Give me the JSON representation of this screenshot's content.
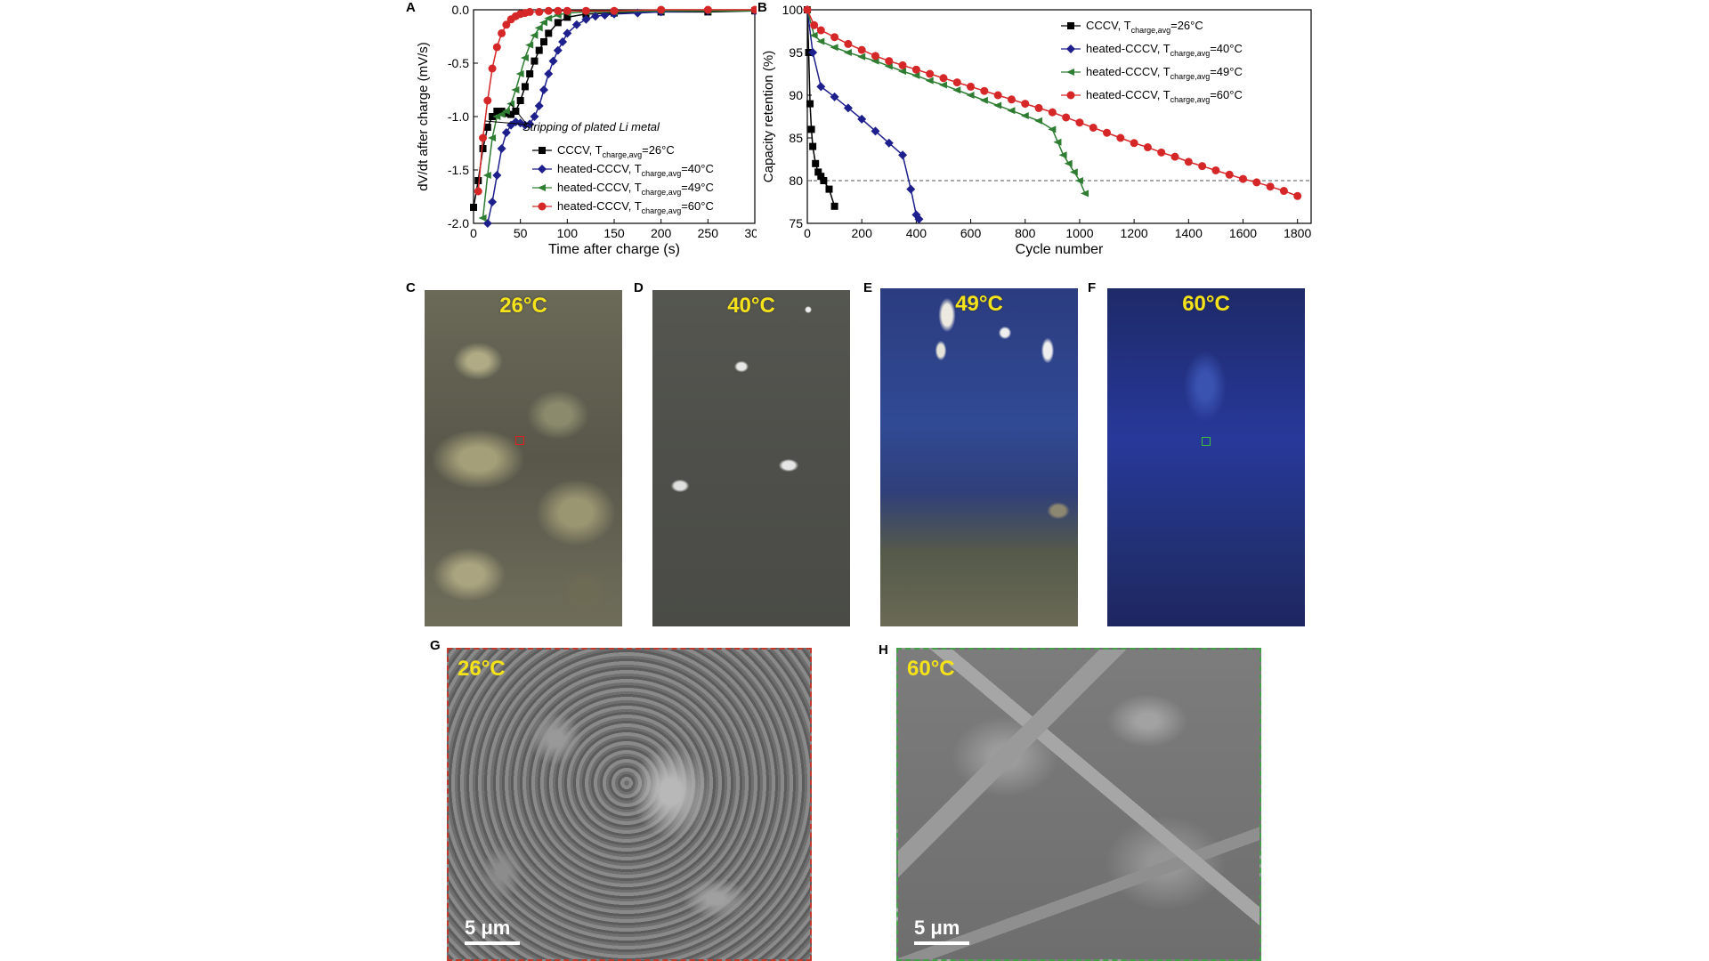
{
  "panels": {
    "A": "A",
    "B": "B",
    "C": "C",
    "D": "D",
    "E": "E",
    "F": "F",
    "G": "G",
    "H": "H"
  },
  "photos": {
    "c": "26°C",
    "d": "40°C",
    "e": "49°C",
    "f": "60°C"
  },
  "sem": {
    "g": {
      "temp": "26°C",
      "scale": "5 μm"
    },
    "h": {
      "temp": "60°C",
      "scale": "5 μm"
    }
  },
  "colors": {
    "cccv": "#000000",
    "h40": "#1d1f8c",
    "h49": "#2e7d32",
    "h60": "#d62728"
  },
  "chart_data": [
    {
      "type": "line",
      "xlabel": "Time after charge (s)",
      "ylabel": "dV/dt after charge (mV/s)",
      "xlim": [
        0,
        300
      ],
      "ylim": [
        -2.0,
        0.0
      ],
      "xticks": [
        "0",
        "50",
        "100",
        "150",
        "200",
        "250",
        "300"
      ],
      "yticks": [
        "-2.0",
        "-1.5",
        "-1.0",
        "-0.5",
        "0.0"
      ],
      "annotation": "Stripping of plated Li metal",
      "legend": "bottom-right",
      "series": [
        {
          "name": "CCCV, T",
          "sub": "charge,avg",
          "suffix": "=26°C",
          "color": "#000000",
          "marker": "square",
          "x": [
            0,
            5,
            10,
            15,
            20,
            25,
            30,
            35,
            40,
            45,
            50,
            55,
            60,
            65,
            70,
            75,
            80,
            90,
            100,
            120,
            150,
            200,
            250,
            300
          ],
          "y": [
            -1.85,
            -1.6,
            -1.3,
            -1.1,
            -1.0,
            -0.95,
            -0.95,
            -0.97,
            -0.98,
            -0.95,
            -0.85,
            -0.72,
            -0.6,
            -0.48,
            -0.38,
            -0.3,
            -0.22,
            -0.12,
            -0.07,
            -0.04,
            -0.03,
            -0.02,
            -0.02,
            -0.01
          ]
        },
        {
          "name": "heated-CCCV, T",
          "sub": "charge,avg",
          "suffix": "=40°C",
          "color": "#1d1f8c",
          "marker": "diamond",
          "x": [
            15,
            20,
            25,
            30,
            35,
            40,
            45,
            50,
            55,
            60,
            65,
            70,
            75,
            80,
            85,
            90,
            95,
            100,
            110,
            120,
            130,
            140,
            150,
            175,
            200,
            250,
            300
          ],
          "y": [
            -2.0,
            -1.8,
            -1.55,
            -1.3,
            -1.15,
            -1.08,
            -1.05,
            -1.06,
            -1.08,
            -1.07,
            -1.0,
            -0.9,
            -0.75,
            -0.6,
            -0.48,
            -0.38,
            -0.3,
            -0.22,
            -0.14,
            -0.09,
            -0.06,
            -0.05,
            -0.04,
            -0.03,
            -0.02,
            -0.01,
            -0.01
          ]
        },
        {
          "name": "heated-CCCV, T",
          "sub": "charge,avg",
          "suffix": "=49°C",
          "color": "#2e7d32",
          "marker": "triangle",
          "x": [
            10,
            15,
            20,
            25,
            30,
            35,
            40,
            45,
            50,
            55,
            60,
            65,
            70,
            75,
            80,
            90,
            100,
            120,
            150,
            200,
            250,
            300
          ],
          "y": [
            -1.95,
            -1.55,
            -1.2,
            -1.0,
            -0.98,
            -0.95,
            -0.88,
            -0.75,
            -0.6,
            -0.45,
            -0.33,
            -0.24,
            -0.17,
            -0.12,
            -0.08,
            -0.05,
            -0.03,
            -0.02,
            -0.02,
            -0.01,
            -0.01,
            -0.01
          ]
        },
        {
          "name": "heated-CCCV, T",
          "sub": "charge,avg",
          "suffix": "=60°C",
          "color": "#d62728",
          "marker": "circle",
          "x": [
            5,
            10,
            15,
            20,
            25,
            30,
            35,
            40,
            45,
            50,
            55,
            60,
            70,
            80,
            90,
            100,
            120,
            150,
            200,
            250,
            300
          ],
          "y": [
            -1.7,
            -1.2,
            -0.85,
            -0.55,
            -0.35,
            -0.22,
            -0.14,
            -0.09,
            -0.06,
            -0.04,
            -0.03,
            -0.02,
            -0.02,
            -0.01,
            -0.01,
            -0.01,
            -0.01,
            -0.01,
            0.0,
            0.0,
            0.0
          ]
        }
      ]
    },
    {
      "type": "line",
      "xlabel": "Cycle number",
      "ylabel": "Capacity retention (%)",
      "xlim": [
        0,
        1850
      ],
      "ylim": [
        75,
        100
      ],
      "xticks": [
        "0",
        "200",
        "400",
        "600",
        "800",
        "1000",
        "1200",
        "1400",
        "1600",
        "1800"
      ],
      "yticks": [
        "75",
        "80",
        "85",
        "90",
        "95",
        "100"
      ],
      "reference_line": 80,
      "legend": "top-right",
      "series": [
        {
          "name": "CCCV, T",
          "sub": "charge,avg",
          "suffix": "=26°C",
          "color": "#000000",
          "marker": "square",
          "x": [
            0,
            5,
            10,
            15,
            20,
            30,
            40,
            50,
            60,
            80,
            100
          ],
          "y": [
            100,
            95,
            89,
            86,
            84,
            82,
            81,
            80.5,
            80,
            79,
            77
          ]
        },
        {
          "name": "heated-CCCV, T",
          "sub": "charge,avg",
          "suffix": "=40°C",
          "color": "#1d1f8c",
          "marker": "diamond",
          "x": [
            0,
            20,
            50,
            100,
            150,
            200,
            250,
            300,
            350,
            380,
            400,
            410
          ],
          "y": [
            100,
            95,
            91,
            89.8,
            88.5,
            87.2,
            85.8,
            84.4,
            83,
            79,
            76,
            75.5
          ]
        },
        {
          "name": "heated-CCCV, T",
          "sub": "charge,avg",
          "suffix": "=49°C",
          "color": "#2e7d32",
          "marker": "triangle",
          "x": [
            0,
            25,
            50,
            100,
            150,
            200,
            250,
            300,
            350,
            400,
            450,
            500,
            550,
            600,
            650,
            700,
            750,
            800,
            850,
            900,
            920,
            940,
            960,
            980,
            1000,
            1020
          ],
          "y": [
            100,
            97,
            96.3,
            95.6,
            95,
            94.5,
            94,
            93.4,
            92.8,
            92.3,
            91.7,
            91.2,
            90.6,
            90,
            89.4,
            88.8,
            88.2,
            87.6,
            87,
            86,
            84.5,
            83,
            82,
            81,
            80,
            78.5
          ]
        },
        {
          "name": "heated-CCCV, T",
          "sub": "charge,avg",
          "suffix": "=60°C",
          "color": "#d62728",
          "marker": "circle",
          "x": [
            0,
            25,
            50,
            100,
            150,
            200,
            250,
            300,
            350,
            400,
            450,
            500,
            550,
            600,
            650,
            700,
            750,
            800,
            850,
            900,
            950,
            1000,
            1050,
            1100,
            1150,
            1200,
            1250,
            1300,
            1350,
            1400,
            1450,
            1500,
            1550,
            1600,
            1650,
            1700,
            1750,
            1800
          ],
          "y": [
            100,
            98.2,
            97.6,
            96.8,
            96,
            95.3,
            94.6,
            94,
            93.5,
            93,
            92.5,
            92,
            91.5,
            91,
            90.5,
            90,
            89.5,
            89,
            88.5,
            88,
            87.4,
            86.8,
            86.2,
            85.6,
            85,
            84.4,
            83.9,
            83.3,
            82.8,
            82.2,
            81.7,
            81.2,
            80.7,
            80.2,
            79.8,
            79.3,
            78.8,
            78.2
          ]
        }
      ]
    }
  ]
}
